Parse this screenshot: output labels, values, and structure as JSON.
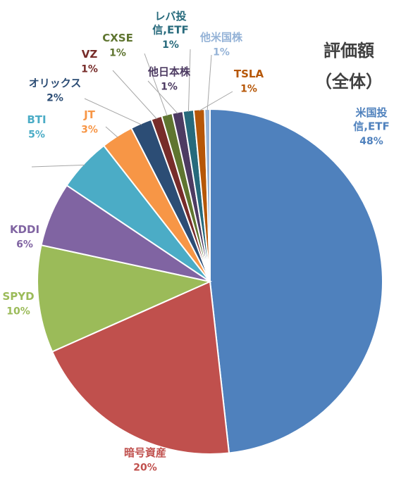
{
  "chart_data": {
    "type": "pie",
    "title": "評価額",
    "subtitle": "（全体）",
    "slices": [
      {
        "name": "米国投\n信,ETF",
        "value": 48,
        "label": "48%",
        "color": "#4f81bd"
      },
      {
        "name": "暗号資産",
        "value": 20,
        "label": "20%",
        "color": "#c0504d"
      },
      {
        "name": "SPYD",
        "value": 10,
        "label": "10%",
        "color": "#9bbb59"
      },
      {
        "name": "KDDI",
        "value": 6,
        "label": "6%",
        "color": "#8064a2"
      },
      {
        "name": "BTI",
        "value": 5,
        "label": "5%",
        "color": "#4bacc6"
      },
      {
        "name": "JT",
        "value": 3,
        "label": "3%",
        "color": "#f79646"
      },
      {
        "name": "オリックス",
        "value": 2,
        "label": "2%",
        "color": "#2c4d75"
      },
      {
        "name": "VZ",
        "value": 1,
        "label": "1%",
        "color": "#772c2a"
      },
      {
        "name": "CXSE",
        "value": 1,
        "label": "1%",
        "color": "#5f7530"
      },
      {
        "name": "他日本株",
        "value": 1,
        "label": "1%",
        "color": "#4d3b62"
      },
      {
        "name": "レバ投\n信,ETF",
        "value": 1,
        "label": "1%",
        "color": "#276a7c"
      },
      {
        "name": "TSLA",
        "value": 1,
        "label": "1%",
        "color": "#b65708"
      },
      {
        "name": "他米国株",
        "value": 0.5,
        "label": "1%",
        "color": "#95b3d7"
      }
    ]
  }
}
